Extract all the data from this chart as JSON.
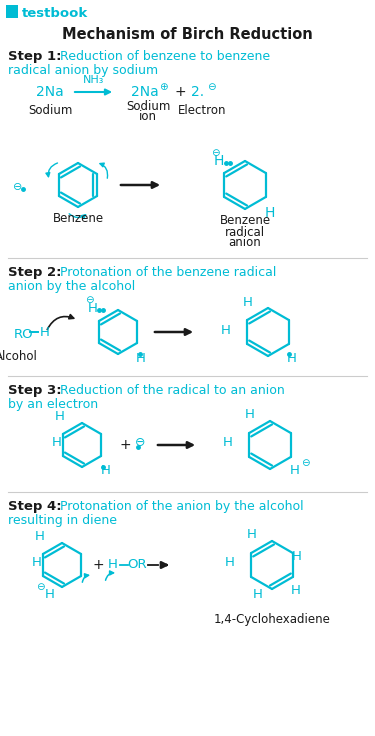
{
  "title": "Mechanism of Birch Reduction",
  "logo_text": "testbook",
  "cyan": "#00BCD4",
  "black": "#1a1a1a",
  "bg": "#ffffff",
  "step1_label": "Step 1:",
  "step1_cyan1": "Reduction of benzene to benzene",
  "step1_cyan2": "radical anion by sodium",
  "step2_label": "Step 2:",
  "step2_cyan1": "Protonation of the benzene radical",
  "step2_cyan2": "anion by the alcohol",
  "step3_label": "Step 3:",
  "step3_cyan1": "Reduction of the radical to an anion",
  "step3_cyan2": "by an electron",
  "step4_label": "Step 4:",
  "step4_cyan1": "Protonation of the anion by the alcohol",
  "step4_cyan2": "resulting in diene",
  "product_label": "1,4-Cyclohexadiene",
  "sodium_label": "Sodium",
  "sodium_ion1": "Sodium",
  "sodium_ion2": "ion",
  "electron_label": "Electron",
  "benzene_label": "Benzene",
  "radical_anion1": "Benzene",
  "radical_anion2": "radical",
  "radical_anion3": "anion",
  "alcohol_label": "Alcohol"
}
